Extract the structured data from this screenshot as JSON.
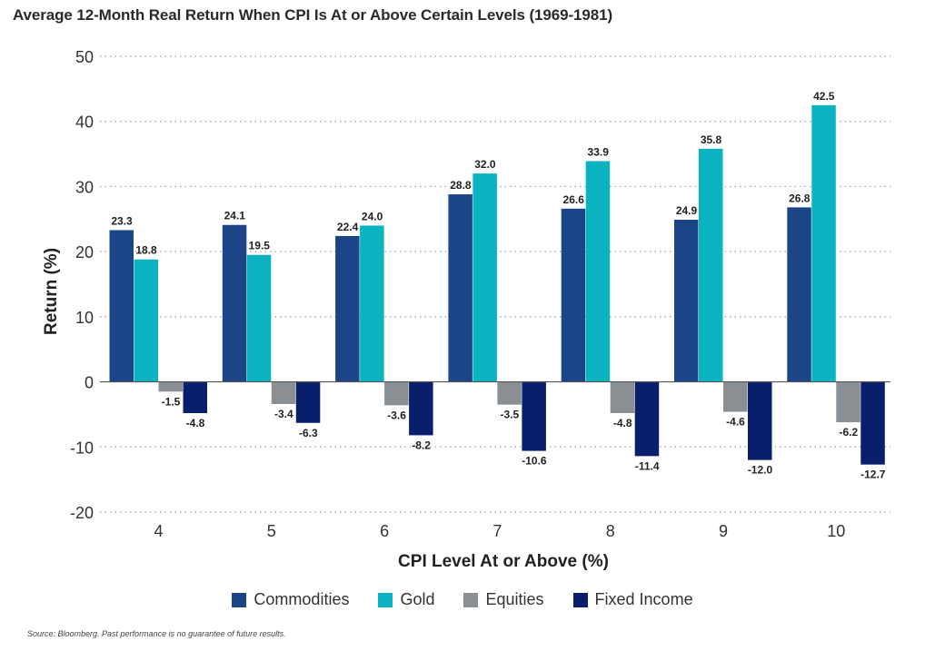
{
  "chart_data": {
    "type": "bar",
    "title": "Average 12-Month Real Return When CPI Is At or Above Certain Levels (1969-1981)",
    "xlabel": "CPI Level At or Above (%)",
    "ylabel": "Return (%)",
    "ylim": [
      -20,
      50
    ],
    "yticks": [
      -20,
      -10,
      0,
      10,
      20,
      30,
      40,
      50
    ],
    "categories": [
      "4",
      "5",
      "6",
      "7",
      "8",
      "9",
      "10"
    ],
    "grid": "horizontal dotted",
    "legend_placement": "bottom",
    "series": [
      {
        "name": "Commodities",
        "color": "#1c4587",
        "values": [
          23.3,
          24.1,
          22.4,
          28.8,
          26.6,
          24.9,
          26.8
        ]
      },
      {
        "name": "Gold",
        "color": "#0bb3c0",
        "values": [
          18.8,
          19.5,
          24.0,
          32.0,
          33.9,
          35.8,
          42.5
        ]
      },
      {
        "name": "Equities",
        "color": "#8a8f94",
        "values": [
          -1.5,
          -3.4,
          -3.6,
          -3.5,
          -4.8,
          -4.6,
          -6.2
        ]
      },
      {
        "name": "Fixed Income",
        "color": "#0a1f6b",
        "values": [
          -4.8,
          -6.3,
          -8.2,
          -10.6,
          -11.4,
          -12.0,
          -12.7
        ]
      }
    ]
  },
  "source_note": "Source: Bloomberg. Past performance is no guarantee of future results."
}
